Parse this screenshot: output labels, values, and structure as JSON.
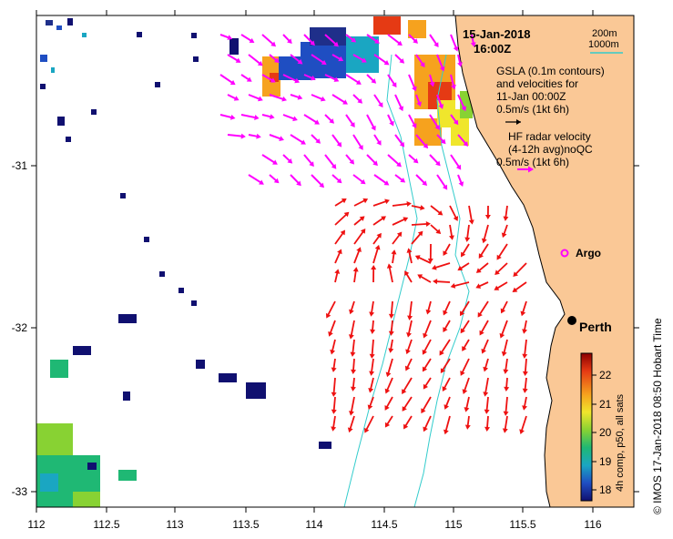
{
  "title": {
    "date": "15-Jan-2018",
    "time": "16:00Z"
  },
  "depth_legend": {
    "a": "200m",
    "b": "1000m",
    "line_color": "#33cccc"
  },
  "gsla": {
    "l1": "GSLA (0.1m contours)",
    "l2": "and velocities for",
    "l3": "11-Jan 00:00Z",
    "l4": "0.5m/s (1kt 6h)"
  },
  "hf": {
    "l1": "HF radar velocity",
    "l2": "(4-12h avg)noQC",
    "l3": "0.5m/s (1kt 6h)"
  },
  "places": {
    "argo": "Argo",
    "perth": "Perth"
  },
  "axes": {
    "x_ticks": [
      "112",
      "112.5",
      "113",
      "113.5",
      "114",
      "114.5",
      "115",
      "115.5",
      "116"
    ],
    "y_ticks": [
      "-31",
      "-32",
      "-33"
    ]
  },
  "colorbar": {
    "ticks": [
      "22",
      "21",
      "20",
      "19",
      "18"
    ],
    "label": "4h comp, p50, all sats",
    "colors": [
      "#8b0000",
      "#e53a14",
      "#f6a21e",
      "#f0e62c",
      "#88d233",
      "#1fb874",
      "#1aa6c2",
      "#1f4ec2",
      "#101070"
    ]
  },
  "credit": "©  IMOS 17-Jan-2018 08:50 Hobart Time",
  "colors": {
    "land": "#fac896",
    "hf_arrow": "#ff00ff",
    "gsla_arrow": "#ee1111",
    "isobath": "#33cccc"
  }
}
